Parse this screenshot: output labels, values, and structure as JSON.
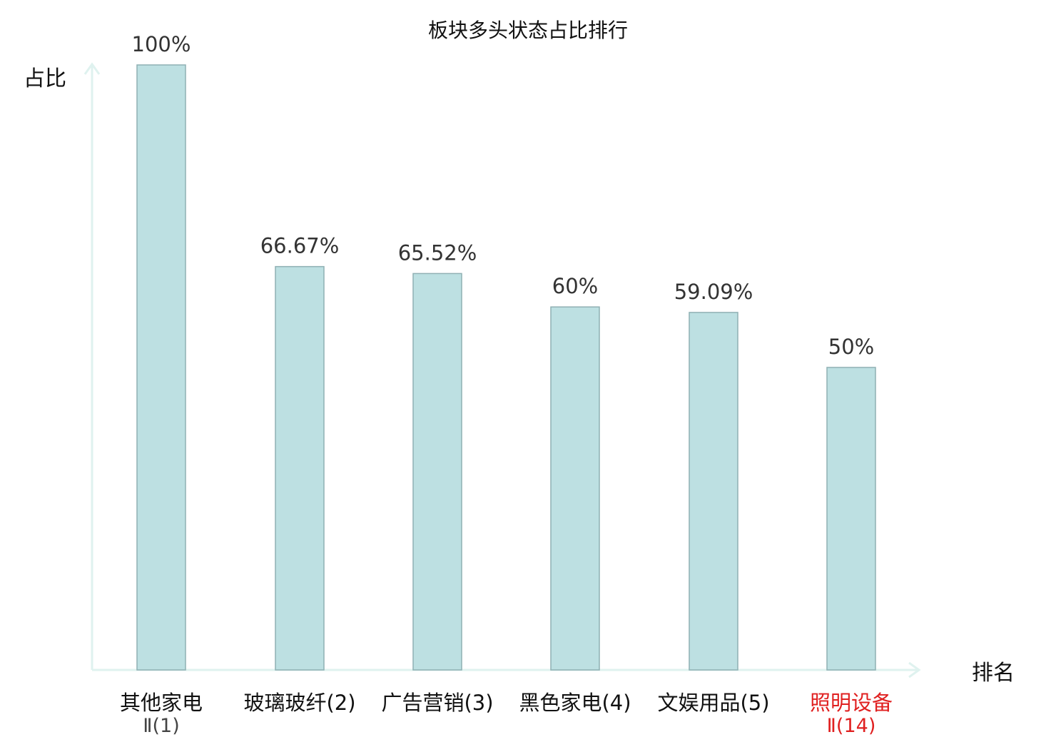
{
  "chart_data": {
    "type": "bar",
    "title": "板块多头状态占比排行",
    "xlabel": "排名",
    "ylabel": "占比",
    "ylim": [
      0,
      100
    ],
    "grid": false,
    "legend": "none",
    "bar_color": "#bde0e2",
    "bar_border": "#8fb0b3",
    "axis_color": "#dff2ef",
    "highlight_color": "#e02020",
    "label_color": "#333333",
    "categories": [
      {
        "line1": "其他家电",
        "line2": "Ⅱ(1)",
        "highlight": false
      },
      {
        "line1": "玻璃玻纤(2)",
        "line2": "",
        "highlight": false
      },
      {
        "line1": "广告营销(3)",
        "line2": "",
        "highlight": false
      },
      {
        "line1": "黑色家电(4)",
        "line2": "",
        "highlight": false
      },
      {
        "line1": "文娱用品(5)",
        "line2": "",
        "highlight": false
      },
      {
        "line1": "照明设备",
        "line2": "Ⅱ(14)",
        "highlight": true
      }
    ],
    "values": [
      100,
      66.67,
      65.52,
      60,
      59.09,
      50
    ],
    "value_labels": [
      "100%",
      "66.67%",
      "65.52%",
      "60%",
      "59.09%",
      "50%"
    ]
  }
}
